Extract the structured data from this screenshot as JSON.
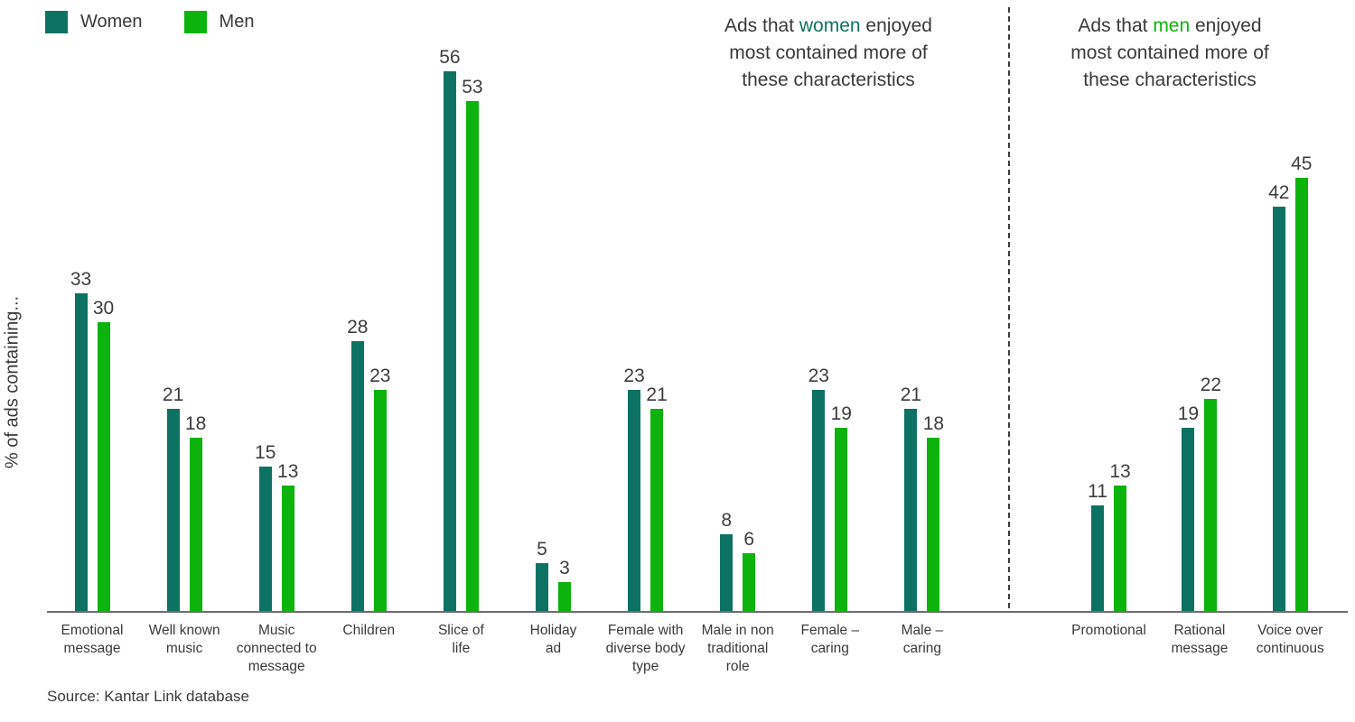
{
  "legend": {
    "items": [
      {
        "label": "Women",
        "color": "#0e7263"
      },
      {
        "label": "Men",
        "color": "#0db30d"
      }
    ]
  },
  "ylabel": "% of ads containing...",
  "annotations": {
    "women": {
      "pre": "Ads that ",
      "keyword": "women",
      "keyword_color": "#0e7263",
      "post": " enjoyed",
      "line2": "most contained more of",
      "line3": "these characteristics"
    },
    "men": {
      "pre": "Ads that ",
      "keyword": "men",
      "keyword_color": "#0db30d",
      "post": " enjoyed",
      "line2": "most contained more of",
      "line3": "these characteristics"
    }
  },
  "source": "Source: Kantar Link database",
  "chart_data": {
    "type": "bar",
    "title": "",
    "ylabel": "% of ads containing...",
    "legend_position": "top-left",
    "grid": false,
    "value_axis_hidden": true,
    "divider_after_index": 9,
    "categories": [
      {
        "label": "Emotional message",
        "lines": [
          "Emotional",
          "message"
        ],
        "section": "left"
      },
      {
        "label": "Well known music",
        "lines": [
          "Well known",
          "music"
        ],
        "section": "left"
      },
      {
        "label": "Music connected to message",
        "lines": [
          "Music",
          "connected to",
          "message"
        ],
        "section": "left"
      },
      {
        "label": "Children",
        "lines": [
          "Children"
        ],
        "section": "left"
      },
      {
        "label": "Slice of life",
        "lines": [
          "Slice of",
          "life"
        ],
        "section": "left"
      },
      {
        "label": "Holiday ad",
        "lines": [
          "Holiday",
          "ad"
        ],
        "section": "left"
      },
      {
        "label": "Female with diverse body type",
        "lines": [
          "Female with",
          "diverse body",
          "type"
        ],
        "section": "left"
      },
      {
        "label": "Male in non traditional role",
        "lines": [
          "Male in non",
          "traditional",
          "role"
        ],
        "section": "left"
      },
      {
        "label": "Female – caring",
        "lines": [
          "Female –",
          "caring"
        ],
        "section": "left"
      },
      {
        "label": "Male – caring",
        "lines": [
          "Male –",
          "caring"
        ],
        "section": "left"
      },
      {
        "label": "Promotional",
        "lines": [
          "Promotional"
        ],
        "section": "right"
      },
      {
        "label": "Rational message",
        "lines": [
          "Rational",
          "message"
        ],
        "section": "right"
      },
      {
        "label": "Voice over continuous",
        "lines": [
          "Voice over",
          "continuous"
        ],
        "section": "right"
      }
    ],
    "series": [
      {
        "name": "Women",
        "color": "#0e7263",
        "values": [
          33,
          21,
          15,
          28,
          56,
          5,
          23,
          8,
          23,
          21,
          11,
          19,
          42
        ]
      },
      {
        "name": "Men",
        "color": "#0db30d",
        "values": [
          30,
          18,
          13,
          23,
          53,
          3,
          21,
          6,
          19,
          18,
          13,
          22,
          45
        ]
      }
    ]
  }
}
